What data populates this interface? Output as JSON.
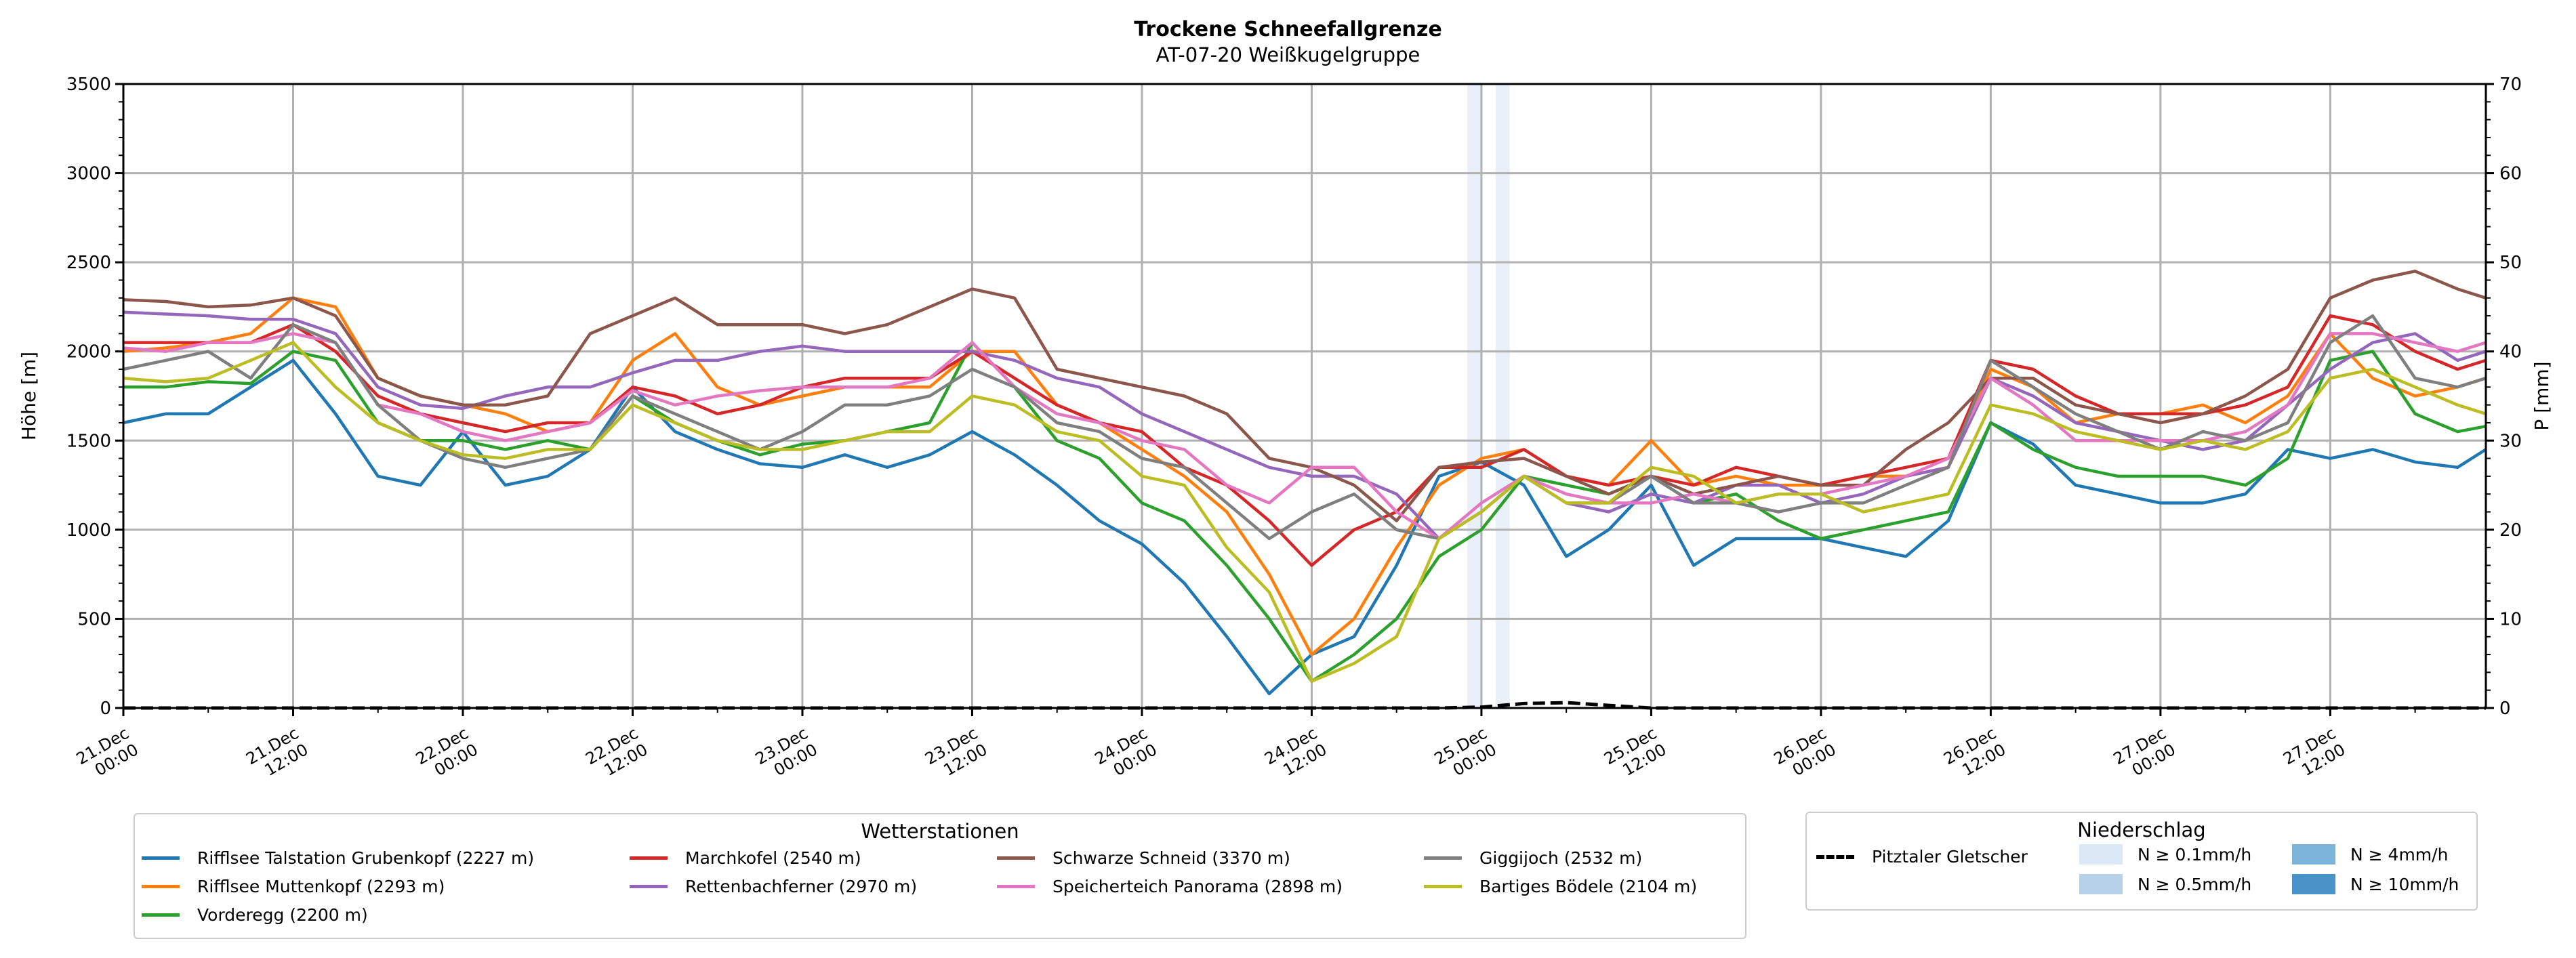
{
  "chart_data": {
    "type": "line",
    "title": "Trockene Schneefallgrenze",
    "subtitle": "AT-07-20 Weißkugelgruppe",
    "ylabel": "Höhe [m]",
    "ylabel_right": "P [mm]",
    "ylim": [
      0,
      3500
    ],
    "ylim_right": [
      0,
      70
    ],
    "yticks": [
      0,
      500,
      1000,
      1500,
      2000,
      2500,
      3000,
      3500
    ],
    "yticks_right": [
      0,
      10,
      20,
      30,
      40,
      50,
      60,
      70
    ],
    "grid": true,
    "x_unit": "hours since 21.Dec 00:00",
    "xlim": [
      0,
      167
    ],
    "xticks": [
      {
        "h": 0,
        "l1": "21.Dec",
        "l2": "00:00"
      },
      {
        "h": 12,
        "l1": "21.Dec",
        "l2": "12:00"
      },
      {
        "h": 24,
        "l1": "22.Dec",
        "l2": "00:00"
      },
      {
        "h": 36,
        "l1": "22.Dec",
        "l2": "12:00"
      },
      {
        "h": 48,
        "l1": "23.Dec",
        "l2": "00:00"
      },
      {
        "h": 60,
        "l1": "23.Dec",
        "l2": "12:00"
      },
      {
        "h": 72,
        "l1": "24.Dec",
        "l2": "00:00"
      },
      {
        "h": 84,
        "l1": "24.Dec",
        "l2": "12:00"
      },
      {
        "h": 96,
        "l1": "25.Dec",
        "l2": "00:00"
      },
      {
        "h": 108,
        "l1": "25.Dec",
        "l2": "12:00"
      },
      {
        "h": 120,
        "l1": "26.Dec",
        "l2": "00:00"
      },
      {
        "h": 132,
        "l1": "26.Dec",
        "l2": "12:00"
      },
      {
        "h": 144,
        "l1": "27.Dec",
        "l2": "00:00"
      },
      {
        "h": 156,
        "l1": "27.Dec",
        "l2": "12:00"
      }
    ],
    "x": [
      0,
      3,
      6,
      9,
      12,
      15,
      18,
      21,
      24,
      27,
      30,
      33,
      36,
      39,
      42,
      45,
      48,
      51,
      54,
      57,
      60,
      63,
      66,
      69,
      72,
      75,
      78,
      81,
      84,
      87,
      90,
      93,
      96,
      99,
      102,
      105,
      108,
      111,
      114,
      117,
      120,
      123,
      126,
      129,
      132,
      135,
      138,
      141,
      144,
      147,
      150,
      153,
      156,
      159,
      162,
      165,
      167
    ],
    "series": [
      {
        "name": "Rifflsee Talstation Grubenkopf (2227 m)",
        "color": "#1f77b4",
        "values": [
          1600,
          1650,
          1650,
          1800,
          1950,
          1650,
          1300,
          1250,
          1550,
          1250,
          1300,
          1450,
          1800,
          1550,
          1450,
          1370,
          1350,
          1420,
          1350,
          1420,
          1550,
          1420,
          1250,
          1050,
          920,
          700,
          400,
          80,
          300,
          400,
          800,
          1300,
          1380,
          1250,
          850,
          1000,
          1250,
          800,
          950,
          950,
          950,
          900,
          850,
          1050,
          1600,
          1480,
          1250,
          1200,
          1150,
          1150,
          1200,
          1450,
          1400,
          1450,
          1380,
          1350,
          1450
        ]
      },
      {
        "name": "Rifflsee Muttenkopf (2293 m)",
        "color": "#ff7f0e",
        "values": [
          2000,
          2020,
          2050,
          2100,
          2300,
          2250,
          1850,
          1750,
          1700,
          1650,
          1550,
          1600,
          1950,
          2100,
          1800,
          1700,
          1750,
          1800,
          1800,
          1800,
          2000,
          2000,
          1700,
          1600,
          1450,
          1300,
          1100,
          750,
          300,
          500,
          900,
          1250,
          1400,
          1450,
          1300,
          1250,
          1500,
          1250,
          1300,
          1250,
          1250,
          1300,
          1300,
          1350,
          1900,
          1800,
          1600,
          1650,
          1650,
          1700,
          1600,
          1750,
          2100,
          1850,
          1750,
          1800,
          1850
        ]
      },
      {
        "name": "Vorderegg (2200 m)",
        "color": "#2ca02c",
        "values": [
          1800,
          1800,
          1830,
          1820,
          2000,
          1950,
          1600,
          1500,
          1500,
          1450,
          1500,
          1450,
          1750,
          1600,
          1500,
          1420,
          1480,
          1500,
          1550,
          1600,
          2050,
          1800,
          1500,
          1400,
          1150,
          1050,
          800,
          500,
          150,
          300,
          500,
          850,
          1000,
          1300,
          1250,
          1200,
          1300,
          1150,
          1200,
          1050,
          950,
          1000,
          1050,
          1100,
          1600,
          1450,
          1350,
          1300,
          1300,
          1300,
          1250,
          1400,
          1950,
          2000,
          1650,
          1550,
          1580
        ]
      },
      {
        "name": "Marchkofel (2540 m)",
        "color": "#d62728",
        "values": [
          2050,
          2050,
          2050,
          2050,
          2150,
          2000,
          1750,
          1650,
          1600,
          1550,
          1600,
          1600,
          1800,
          1750,
          1650,
          1700,
          1800,
          1850,
          1850,
          1850,
          2000,
          1850,
          1700,
          1600,
          1550,
          1350,
          1250,
          1050,
          800,
          1000,
          1100,
          1350,
          1350,
          1450,
          1300,
          1250,
          1300,
          1250,
          1350,
          1300,
          1250,
          1300,
          1350,
          1400,
          1950,
          1900,
          1750,
          1650,
          1650,
          1650,
          1700,
          1800,
          2200,
          2150,
          2000,
          1900,
          1950
        ]
      },
      {
        "name": "Rettenbachferner (2970 m)",
        "color": "#9467bd",
        "values": [
          2220,
          2210,
          2200,
          2180,
          2180,
          2100,
          1800,
          1700,
          1680,
          1750,
          1800,
          1800,
          1880,
          1950,
          1950,
          2000,
          2030,
          2000,
          2000,
          2000,
          2000,
          1950,
          1850,
          1800,
          1650,
          1550,
          1450,
          1350,
          1300,
          1300,
          1200,
          950,
          1100,
          1300,
          1150,
          1100,
          1200,
          1150,
          1250,
          1250,
          1150,
          1200,
          1300,
          1350,
          1850,
          1750,
          1600,
          1550,
          1500,
          1450,
          1500,
          1700,
          1900,
          2050,
          2100,
          1950,
          2000
        ]
      },
      {
        "name": "Schwarze Schneid (3370 m)",
        "color": "#8c564b",
        "values": [
          2290,
          2280,
          2250,
          2260,
          2300,
          2200,
          1850,
          1750,
          1700,
          1700,
          1750,
          2100,
          2200,
          2300,
          2150,
          2150,
          2150,
          2100,
          2150,
          2250,
          2350,
          2300,
          1900,
          1850,
          1800,
          1750,
          1650,
          1400,
          1350,
          1250,
          1050,
          1350,
          1380,
          1400,
          1300,
          1200,
          1300,
          1200,
          1250,
          1300,
          1250,
          1250,
          1450,
          1600,
          1850,
          1850,
          1700,
          1650,
          1600,
          1650,
          1750,
          1900,
          2300,
          2400,
          2450,
          2350,
          2300
        ]
      },
      {
        "name": "Speicherteich Panorama (2898 m)",
        "color": "#e377c2",
        "values": [
          2020,
          2000,
          2050,
          2050,
          2100,
          2050,
          1700,
          1650,
          1550,
          1500,
          1550,
          1600,
          1780,
          1700,
          1750,
          1780,
          1800,
          1800,
          1800,
          1850,
          2050,
          1800,
          1650,
          1600,
          1500,
          1450,
          1250,
          1150,
          1350,
          1350,
          1100,
          950,
          1150,
          1300,
          1200,
          1150,
          1150,
          1200,
          1150,
          1200,
          1200,
          1250,
          1300,
          1400,
          1850,
          1700,
          1500,
          1500,
          1500,
          1500,
          1550,
          1700,
          2100,
          2100,
          2050,
          2000,
          2050
        ]
      },
      {
        "name": "Giggijoch (2532 m)",
        "color": "#7f7f7f",
        "values": [
          1900,
          1950,
          2000,
          1850,
          2150,
          2050,
          1700,
          1500,
          1400,
          1350,
          1400,
          1450,
          1750,
          1650,
          1550,
          1450,
          1550,
          1700,
          1700,
          1750,
          1900,
          1800,
          1600,
          1550,
          1400,
          1350,
          1150,
          950,
          1100,
          1200,
          1000,
          950,
          1100,
          1300,
          1150,
          1150,
          1300,
          1150,
          1150,
          1100,
          1150,
          1150,
          1250,
          1350,
          1950,
          1800,
          1650,
          1550,
          1450,
          1550,
          1500,
          1600,
          2050,
          2200,
          1850,
          1800,
          1850
        ]
      },
      {
        "name": "Bartiges Bödele (2104 m)",
        "color": "#bcbd22",
        "values": [
          1850,
          1830,
          1850,
          1950,
          2050,
          1800,
          1600,
          1500,
          1420,
          1400,
          1450,
          1450,
          1700,
          1600,
          1500,
          1450,
          1450,
          1500,
          1550,
          1550,
          1750,
          1700,
          1550,
          1500,
          1300,
          1250,
          900,
          650,
          150,
          250,
          400,
          950,
          1100,
          1300,
          1150,
          1150,
          1350,
          1300,
          1150,
          1200,
          1200,
          1100,
          1150,
          1200,
          1700,
          1650,
          1550,
          1500,
          1450,
          1500,
          1450,
          1550,
          1850,
          1900,
          1800,
          1700,
          1650
        ]
      }
    ],
    "precip_line": {
      "name": "Pitztaler Gletscher",
      "color": "#000000",
      "values": [
        0,
        0,
        0,
        0,
        0,
        0,
        0,
        0,
        0,
        0,
        0,
        0,
        0,
        0,
        0,
        0,
        0,
        0,
        0,
        0,
        0,
        0,
        0,
        0,
        0,
        0,
        0,
        0,
        0,
        0,
        0,
        0,
        0.1,
        0.5,
        0.6,
        0.3,
        0,
        0,
        0,
        0,
        0,
        0,
        0,
        0,
        0,
        0,
        0,
        0,
        0,
        0,
        0,
        0,
        0,
        0,
        0,
        0,
        0
      ]
    },
    "precip_bands": [
      {
        "start": 95,
        "end": 96,
        "class": "N ≥ 0.1mm/h"
      },
      {
        "start": 97,
        "end": 98,
        "class": "N ≥ 0.1mm/h"
      }
    ]
  },
  "legend_stations": {
    "title": "Wetterstationen"
  },
  "legend_precip": {
    "title": "Niederschlag",
    "line_label": "Pitztaler Gletscher",
    "classes": [
      {
        "label": "N ≥ 0.1mm/h",
        "color": "#dbe8f5"
      },
      {
        "label": "N ≥ 0.5mm/h",
        "color": "#b6d1e8"
      },
      {
        "label": "N ≥ 4mm/h",
        "color": "#7db4da"
      },
      {
        "label": "N ≥ 10mm/h",
        "color": "#4a93c8"
      }
    ]
  }
}
